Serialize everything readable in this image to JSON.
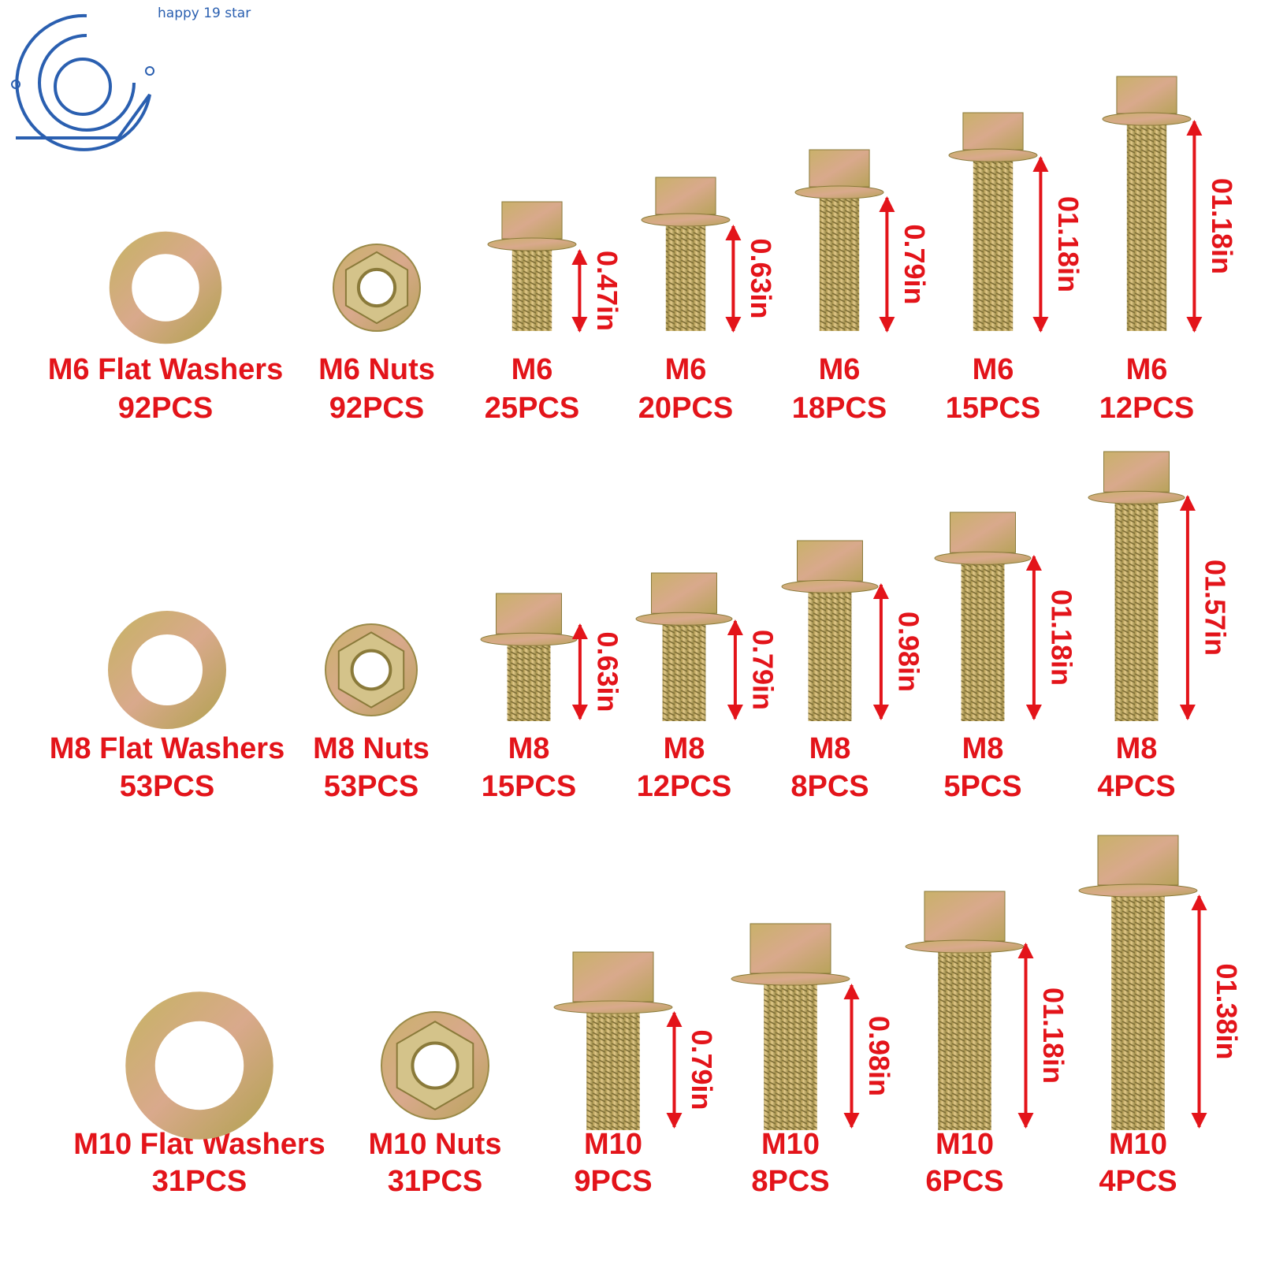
{
  "logo": {
    "text": "happy 19 star"
  },
  "rows": [
    {
      "items": [
        {
          "name": "M6 Flat Washers",
          "count": "92PCS"
        },
        {
          "name": "M6 Nuts",
          "count": "92PCS"
        },
        {
          "name": "M6",
          "count": "25PCS",
          "length": "0.47in"
        },
        {
          "name": "M6",
          "count": "20PCS",
          "length": "0.63in"
        },
        {
          "name": "M6",
          "count": "18PCS",
          "length": "0.79in"
        },
        {
          "name": "M6",
          "count": "15PCS",
          "length": "01.18in"
        },
        {
          "name": "M6",
          "count": "12PCS",
          "length": "01.18in"
        }
      ]
    },
    {
      "items": [
        {
          "name": "M8 Flat Washers",
          "count": "53PCS"
        },
        {
          "name": "M8 Nuts",
          "count": "53PCS"
        },
        {
          "name": "M8",
          "count": "15PCS",
          "length": "0.63in"
        },
        {
          "name": "M8",
          "count": "12PCS",
          "length": "0.79in"
        },
        {
          "name": "M8",
          "count": "8PCS",
          "length": "0.98in"
        },
        {
          "name": "M8",
          "count": "5PCS",
          "length": "01.18in"
        },
        {
          "name": "M8",
          "count": "4PCS",
          "length": "01.57in"
        }
      ]
    },
    {
      "items": [
        {
          "name": "M10 Flat Washers",
          "count": "31PCS"
        },
        {
          "name": "M10 Nuts",
          "count": "31PCS"
        },
        {
          "name": "M10",
          "count": "9PCS",
          "length": "0.79in"
        },
        {
          "name": "M10",
          "count": "8PCS",
          "length": "0.98in"
        },
        {
          "name": "M10",
          "count": "6PCS",
          "length": "01.18in"
        },
        {
          "name": "M10",
          "count": "4PCS",
          "length": "01.38in"
        }
      ]
    }
  ]
}
